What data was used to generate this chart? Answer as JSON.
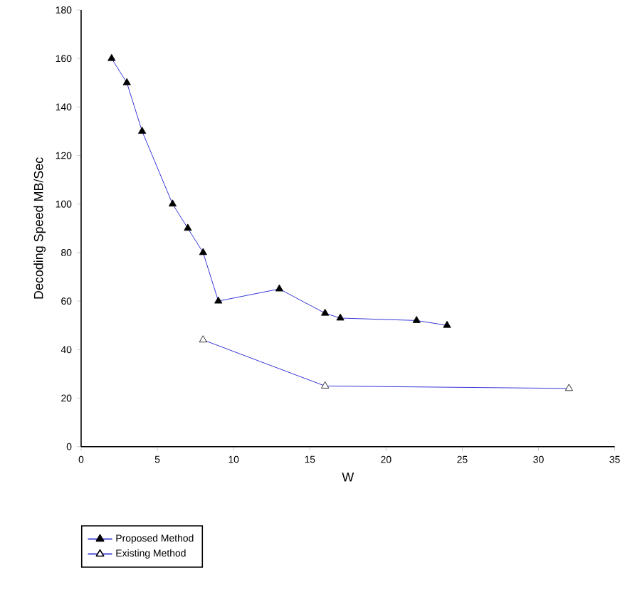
{
  "chart_data": {
    "type": "line",
    "xlabel": "W",
    "ylabel": "Decoding Speed MB/Sec",
    "series": [
      {
        "name": "Proposed Method",
        "color": "#0000cc",
        "x": [
          2,
          3,
          4,
          6,
          7,
          8,
          9,
          13,
          16,
          17,
          22,
          24
        ],
        "values": [
          160,
          150,
          130,
          100,
          90,
          80,
          60,
          65,
          55,
          53,
          52,
          50
        ]
      },
      {
        "name": "Existing Method",
        "color": "#0000cc",
        "x": [
          8,
          16,
          32
        ],
        "values": [
          44,
          25,
          24
        ]
      }
    ],
    "xlim": [
      0,
      35
    ],
    "xticks": [
      0,
      5,
      10,
      15,
      20,
      25,
      30,
      35
    ],
    "ylim": [
      0,
      180
    ],
    "yticks": [
      0,
      20,
      40,
      60,
      80,
      100,
      120,
      140,
      160,
      180
    ],
    "grid": false,
    "legend": "bottom left",
    "marker": "triangle",
    "line_style": "solid"
  }
}
